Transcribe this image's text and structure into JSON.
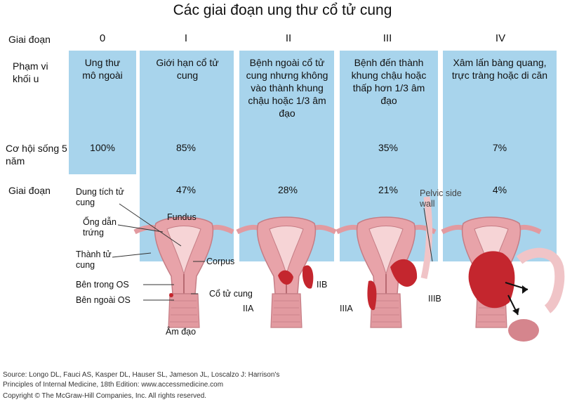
{
  "title": "Các giai đoạn ung thư cổ tử cung",
  "rows": {
    "stage": "Giai đoạn",
    "scope": "Phạm vi khối u",
    "survival": "Cơ hội sống 5 năm",
    "stage2": "Giai đoạn"
  },
  "stages": [
    {
      "num": "0",
      "scope": "Ung thư mô ngoài",
      "survival": "100%",
      "stage_pct": ""
    },
    {
      "num": "I",
      "scope": "Giới hạn cổ tử cung",
      "survival": "85%",
      "stage_pct": "47%"
    },
    {
      "num": "II",
      "scope": "Bệnh ngoài cổ tử cung nhưng không vào thành khung chậu hoặc 1/3 âm đạo",
      "survival": "",
      "stage_pct": "28%"
    },
    {
      "num": "III",
      "scope": "Bệnh đến thành khung chậu hoặc thấp hơn 1/3 âm đạo",
      "survival": "35%",
      "stage_pct": "21%"
    },
    {
      "num": "IV",
      "scope": "Xâm lấn bàng quang, trực tràng hoặc di căn",
      "survival": "7%",
      "stage_pct": "4%"
    }
  ],
  "anatomy": {
    "uterine_cavity": "Dung tích tử cung",
    "fallopian_tube": "Ống dẫn trứng",
    "uterine_wall": "Thành tử cung",
    "internal_os": "Bên trong OS",
    "external_os": "Bên ngoài OS",
    "vagina": "Âm đạo",
    "fundus": "Fundus",
    "corpus": "Corpus",
    "cervix": "Cổ tử cung",
    "pelvic_side_wall": "Pelvic side wall",
    "IIA": "IIA",
    "IIB": "IIB",
    "IIIA": "IIIA",
    "IIIB": "IIIB"
  },
  "footer": {
    "source_line1": "Source: Longo DL, Fauci AS, Kasper DL, Hauser SL, Jameson JL, Loscalzo J: Harrison's",
    "source_line2": "Principles of Internal Medicine, 18th Edition: www.accessmedicine.com",
    "copyright": "Copyright © The McGraw-Hill Companies, Inc. All rights reserved."
  },
  "colors": {
    "panel": "#a8d4ec",
    "uterus": "#e8a3a9",
    "tumor": "#c4262e"
  }
}
